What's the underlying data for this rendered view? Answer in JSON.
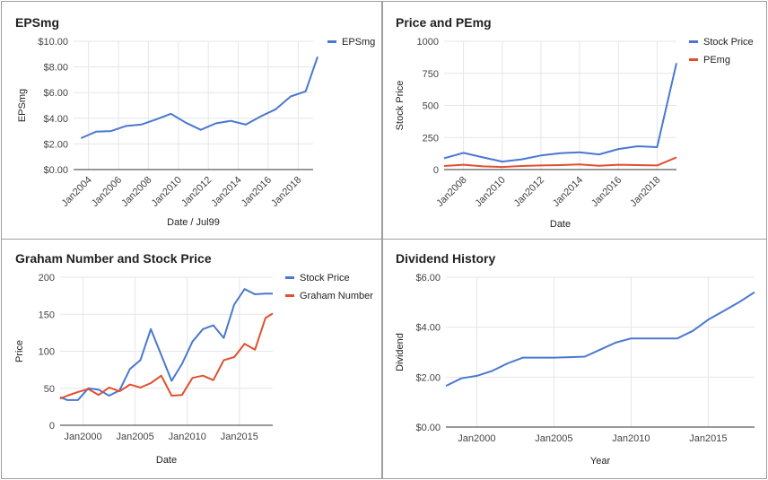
{
  "colors": {
    "blue": "#4a78cf",
    "red": "#e0502f",
    "grid": "#e6e6e6",
    "axis": "#333333"
  },
  "chart_data": [
    {
      "type": "line",
      "title": "EPSmg",
      "xlabel": "Date / Jul99",
      "ylabel": "EPSmg",
      "ylim": [
        0,
        10
      ],
      "xlim": [
        2003,
        2019
      ],
      "y_ticks": [
        "$0.00",
        "$2.00",
        "$4.00",
        "$6.00",
        "$8.00",
        "$10.00"
      ],
      "x_ticks": [
        "Jan2004",
        "Jan2006",
        "Jan2008",
        "Jan2010",
        "Jan2012",
        "Jan2014",
        "Jan2016",
        "Jan2018"
      ],
      "x_tick_values": [
        2004,
        2006,
        2008,
        2010,
        2012,
        2014,
        2016,
        2018
      ],
      "legend": "right",
      "series": [
        {
          "name": "EPSmg",
          "color": "blue",
          "x": [
            2003.5,
            2004.5,
            2005.5,
            2006.5,
            2007.5,
            2008.5,
            2009.5,
            2010.5,
            2011.5,
            2012.5,
            2013.5,
            2014.5,
            2015.5,
            2016.5,
            2017.5,
            2018.5
          ],
          "values": [
            2.45,
            2.95,
            3.0,
            3.4,
            3.5,
            3.9,
            4.35,
            3.65,
            3.1,
            3.6,
            3.8,
            3.5,
            4.15,
            4.7,
            5.7,
            6.1
          ]
        }
      ],
      "extra_points": [
        [
          2019.3,
          8.8
        ]
      ]
    },
    {
      "type": "line",
      "title": "Price and PEmg",
      "xlabel": "Date",
      "ylabel": "Stock Price",
      "ylim": [
        0,
        1000
      ],
      "xlim": [
        2007,
        2019
      ],
      "y_ticks": [
        "0",
        "250",
        "500",
        "750",
        "1000"
      ],
      "x_ticks": [
        "Jan2008",
        "Jan2010",
        "Jan2012",
        "Jan2014",
        "Jan2016",
        "Jan2018"
      ],
      "x_tick_values": [
        2008,
        2010,
        2012,
        2014,
        2016,
        2018
      ],
      "legend": "right",
      "series": [
        {
          "name": "Stock Price",
          "color": "blue",
          "x": [
            2007,
            2008,
            2009,
            2010,
            2011,
            2012,
            2013,
            2014,
            2015,
            2016,
            2017,
            2018,
            2019
          ],
          "values": [
            88,
            130,
            95,
            62,
            80,
            110,
            128,
            135,
            118,
            160,
            182,
            175,
            830
          ]
        },
        {
          "name": "PEmg",
          "color": "red",
          "x": [
            2007,
            2008,
            2009,
            2010,
            2011,
            2012,
            2013,
            2014,
            2015,
            2016,
            2017,
            2018,
            2019
          ],
          "values": [
            28,
            38,
            25,
            20,
            28,
            32,
            35,
            40,
            30,
            38,
            35,
            32,
            95
          ]
        }
      ]
    },
    {
      "type": "line",
      "title": "Graham Number and Stock Price",
      "xlabel": "Date",
      "ylabel": "Price",
      "ylim": [
        0,
        200
      ],
      "xlim": [
        1997.8,
        2018.2
      ],
      "y_ticks": [
        "0",
        "50",
        "100",
        "150",
        "200"
      ],
      "x_ticks": [
        "Jan2000",
        "Jan2005",
        "Jan2010",
        "Jan2015"
      ],
      "x_tick_values": [
        2000,
        2005,
        2010,
        2015
      ],
      "legend": "right",
      "series": [
        {
          "name": "Stock Price",
          "color": "blue",
          "x": [
            1997.8,
            1998.5,
            1999.5,
            2000.5,
            2001.5,
            2002.5,
            2003.5,
            2004.5,
            2005.5,
            2006.5,
            2007.5,
            2008.5,
            2009.5,
            2010.5,
            2011.5,
            2012.5,
            2013.5,
            2014.5,
            2015.5,
            2016.5,
            2017.5,
            2018.2
          ],
          "values": [
            38,
            34,
            34,
            50,
            48,
            40,
            47,
            76,
            88,
            130,
            95,
            60,
            83,
            113,
            130,
            135,
            118,
            163,
            184,
            177,
            178,
            178
          ]
        },
        {
          "name": "Graham Number",
          "color": "red",
          "x": [
            1997.8,
            1998.5,
            1999.5,
            2000.5,
            2001.5,
            2002.5,
            2003.5,
            2004.5,
            2005.5,
            2006.5,
            2007.5,
            2008.5,
            2009.5,
            2010.5,
            2011.5,
            2012.5,
            2013.5,
            2014.5,
            2015.5,
            2016.5,
            2017.5,
            2018.2
          ],
          "values": [
            36,
            40,
            45,
            49,
            41,
            51,
            46,
            55,
            51,
            57,
            67,
            40,
            41,
            64,
            67,
            61,
            88,
            92,
            110,
            102,
            145,
            151
          ]
        }
      ]
    },
    {
      "type": "line",
      "title": "Dividend History",
      "xlabel": "Year",
      "ylabel": "Dividend",
      "ylim": [
        0,
        6
      ],
      "xlim": [
        1998,
        2018
      ],
      "y_ticks": [
        "$0.00",
        "$2.00",
        "$4.00",
        "$6.00"
      ],
      "x_ticks": [
        "Jan2000",
        "Jan2005",
        "Jan2010",
        "Jan2015"
      ],
      "x_tick_values": [
        2000,
        2005,
        2010,
        2015
      ],
      "legend": "none",
      "series": [
        {
          "name": "",
          "color": "blue",
          "x": [
            1998,
            1999,
            2000,
            2001,
            2002,
            2003,
            2004,
            2005,
            2006,
            2007,
            2008,
            2009,
            2010,
            2011,
            2012,
            2013,
            2014,
            2015,
            2016,
            2017,
            2018
          ],
          "values": [
            1.65,
            1.95,
            2.05,
            2.25,
            2.55,
            2.78,
            2.78,
            2.78,
            2.8,
            2.82,
            3.1,
            3.38,
            3.55,
            3.55,
            3.55,
            3.55,
            3.85,
            4.3,
            4.65,
            5.0,
            5.4
          ]
        }
      ]
    }
  ]
}
